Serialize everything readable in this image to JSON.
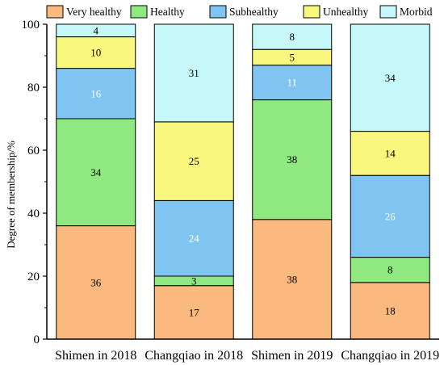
{
  "chart_data": {
    "type": "bar",
    "stacked": true,
    "categories": [
      "Shimen in 2018",
      "Changqiao in 2018",
      "Shimen in 2019",
      "Changqiao in 2019"
    ],
    "series": [
      {
        "name": "Very healthy",
        "color": "#F9B97F",
        "label_color": "#000000",
        "values": [
          36,
          17,
          38,
          18
        ]
      },
      {
        "name": "Healthy",
        "color": "#8FE880",
        "label_color": "#000000",
        "values": [
          34,
          3,
          38,
          8
        ]
      },
      {
        "name": "Subhealthy",
        "color": "#80C4F2",
        "label_color": "#ffffff",
        "values": [
          16,
          24,
          11,
          26
        ]
      },
      {
        "name": "Unhealthy",
        "color": "#FAF77E",
        "label_color": "#000000",
        "values": [
          10,
          25,
          5,
          14
        ]
      },
      {
        "name": "Morbid",
        "color": "#C6F8F9",
        "label_color": "#000000",
        "values": [
          4,
          31,
          8,
          34
        ]
      }
    ],
    "ylabel": "Degree of membership/%",
    "xlabel": "",
    "ylim": [
      0,
      100
    ],
    "yticks": [
      0,
      20,
      40,
      60,
      80,
      100
    ],
    "legend_position": "top",
    "grid": false
  }
}
